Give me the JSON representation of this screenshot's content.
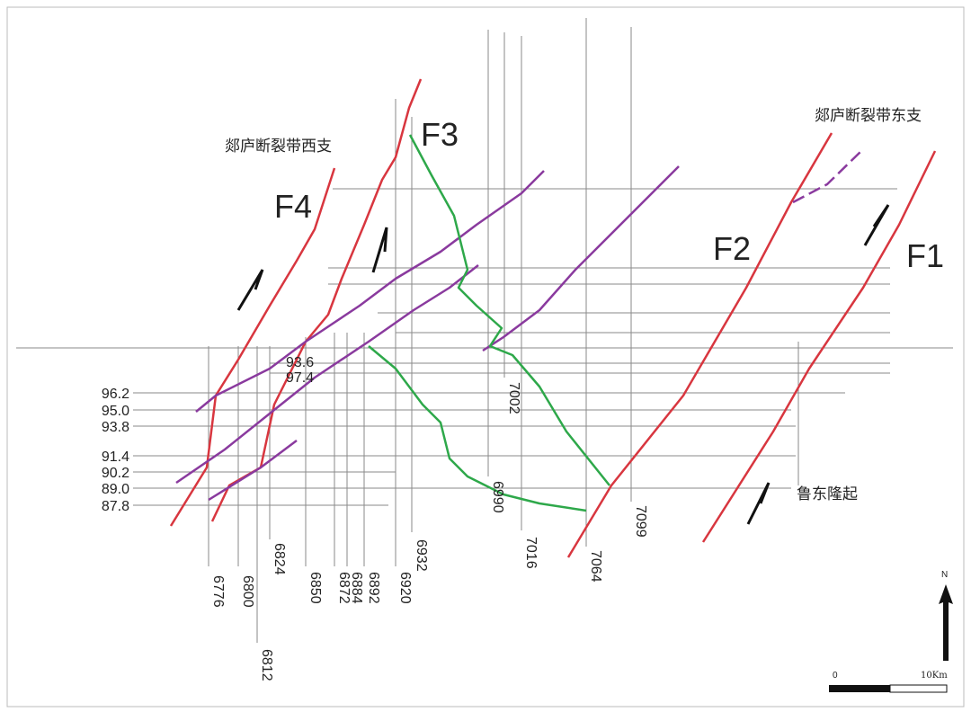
{
  "labels": {
    "west_branch": "郯庐断裂带西支",
    "east_branch": "郯庐断裂带东支",
    "uplift": "鲁东隆起"
  },
  "faults": [
    "F1",
    "F2",
    "F3",
    "F4"
  ],
  "horizontal_lines": [
    "96.2",
    "95.0",
    "93.8",
    "91.4",
    "90.2",
    "89.0",
    "87.8"
  ],
  "inline_values": [
    "93.6",
    "97.4"
  ],
  "vertical_lines": [
    "6776",
    "6800",
    "6812",
    "6824",
    "6850",
    "6872",
    "6884",
    "6892",
    "6920",
    "6932",
    "6990",
    "7002",
    "7016",
    "7064",
    "7099"
  ],
  "scale": {
    "start": "0",
    "end": "10Km"
  },
  "north": "N"
}
